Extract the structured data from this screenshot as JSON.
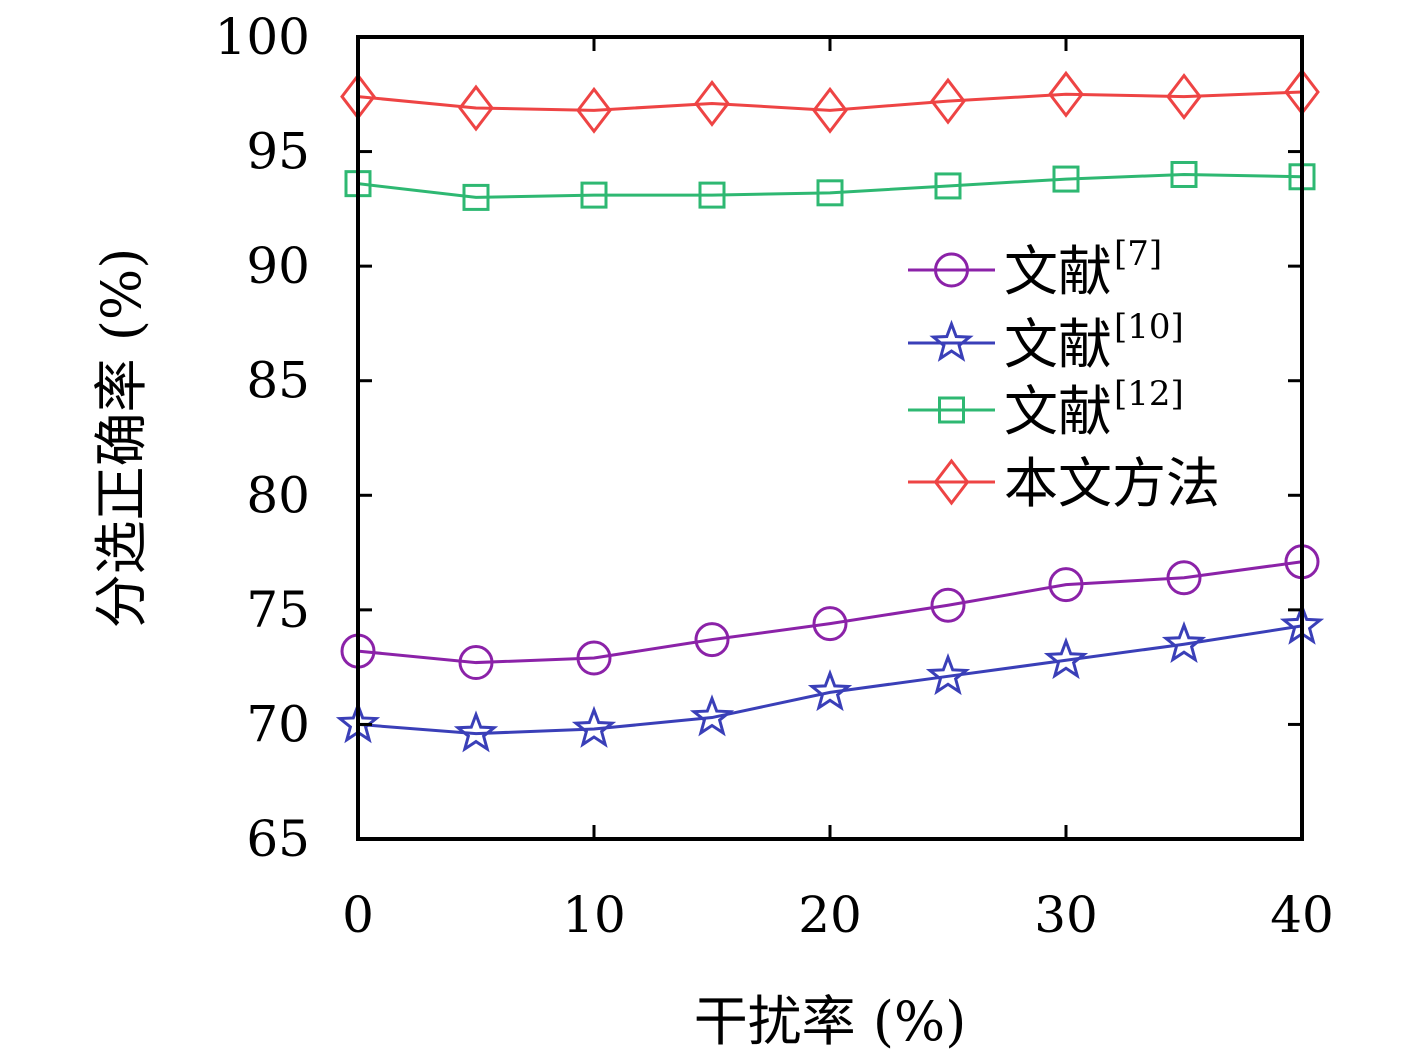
{
  "chart_data": {
    "type": "line",
    "title": "",
    "xlabel": "干扰率 (%)",
    "ylabel": "分选正确率 (%)",
    "x": [
      0,
      5,
      10,
      15,
      20,
      25,
      30,
      35,
      40
    ],
    "xlim": [
      0,
      40
    ],
    "ylim": [
      65,
      100
    ],
    "xticks": [
      "0",
      "10",
      "20",
      "30",
      "40"
    ],
    "yticks": [
      "65",
      "70",
      "75",
      "80",
      "85",
      "90",
      "95",
      "100"
    ],
    "grid": false,
    "legend_position": "center-right",
    "series": [
      {
        "name": "文献",
        "ref": "[7]",
        "color": "#8B22A8",
        "marker": "circle",
        "values": [
          73.2,
          72.7,
          72.9,
          73.7,
          74.4,
          75.2,
          76.1,
          76.4,
          77.1
        ]
      },
      {
        "name": "文献",
        "ref": "[10]",
        "color": "#3A3FB8",
        "marker": "star",
        "values": [
          70.0,
          69.6,
          69.8,
          70.3,
          71.4,
          72.1,
          72.8,
          73.5,
          74.3
        ]
      },
      {
        "name": "文献",
        "ref": "[12]",
        "color": "#2EB872",
        "marker": "square",
        "values": [
          93.6,
          93.0,
          93.1,
          93.1,
          93.2,
          93.5,
          93.8,
          94.0,
          93.9
        ]
      },
      {
        "name": "本文方法",
        "ref": "",
        "color": "#EE4444",
        "marker": "diamond",
        "values": [
          97.4,
          96.9,
          96.8,
          97.1,
          96.8,
          97.2,
          97.5,
          97.4,
          97.6
        ]
      }
    ]
  }
}
